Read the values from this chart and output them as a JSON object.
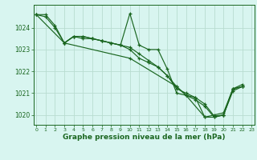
{
  "title": "Graphe pression niveau de la mer (hPa)",
  "bg_color": "#d8f5f0",
  "grid_color": "#b8ddd0",
  "line_color": "#1a6620",
  "xlim": [
    -0.3,
    23.3
  ],
  "ylim": [
    1019.55,
    1025.05
  ],
  "yticks": [
    1020,
    1021,
    1022,
    1023,
    1024
  ],
  "xticks": [
    0,
    1,
    2,
    3,
    4,
    5,
    6,
    7,
    8,
    9,
    10,
    11,
    12,
    13,
    14,
    15,
    16,
    17,
    18,
    19,
    20,
    21,
    22,
    23
  ],
  "series1_x": [
    0,
    1,
    2,
    3,
    4,
    5,
    6,
    7,
    8,
    9,
    10,
    11,
    12,
    13,
    14,
    15,
    16,
    17,
    18,
    19,
    20,
    21,
    22
  ],
  "series1_y": [
    1024.6,
    1024.6,
    1024.1,
    1023.3,
    1023.6,
    1023.6,
    1023.5,
    1023.4,
    1023.3,
    1023.2,
    1024.65,
    1023.2,
    1023.0,
    1023.0,
    1022.1,
    1021.0,
    1020.9,
    1020.8,
    1019.9,
    1020.0,
    1020.1,
    1021.2,
    1021.3
  ],
  "series2_x": [
    0,
    1,
    2,
    3,
    4,
    5,
    6,
    7,
    8,
    9,
    10,
    11,
    12,
    13,
    14,
    15,
    16,
    17,
    18,
    19,
    20,
    21,
    22
  ],
  "series2_y": [
    1024.6,
    1024.5,
    1024.0,
    1023.3,
    1023.6,
    1023.6,
    1023.5,
    1023.4,
    1023.3,
    1023.2,
    1023.0,
    1022.6,
    1022.4,
    1022.2,
    1021.8,
    1021.3,
    1020.9,
    1020.7,
    1020.4,
    1019.9,
    1020.0,
    1021.1,
    1021.3
  ],
  "series3_x": [
    3,
    4,
    5,
    6,
    7,
    8,
    9,
    10,
    11,
    12,
    13,
    14,
    15,
    16,
    17,
    18,
    19,
    20,
    21,
    22
  ],
  "series3_y": [
    1023.3,
    1023.6,
    1023.5,
    1023.5,
    1023.4,
    1023.3,
    1023.2,
    1023.1,
    1022.8,
    1022.5,
    1022.2,
    1021.8,
    1021.2,
    1021.0,
    1020.8,
    1020.5,
    1019.95,
    1020.0,
    1021.2,
    1021.3
  ],
  "series4_x": [
    0,
    3,
    10,
    15,
    16,
    18,
    19,
    20,
    21,
    22
  ],
  "series4_y": [
    1024.6,
    1023.3,
    1022.6,
    1021.3,
    1020.9,
    1019.9,
    1019.9,
    1020.0,
    1021.2,
    1021.4
  ],
  "xlabel_fontsize": 6.5,
  "ytick_fontsize": 5.5,
  "xtick_fontsize": 4.5
}
